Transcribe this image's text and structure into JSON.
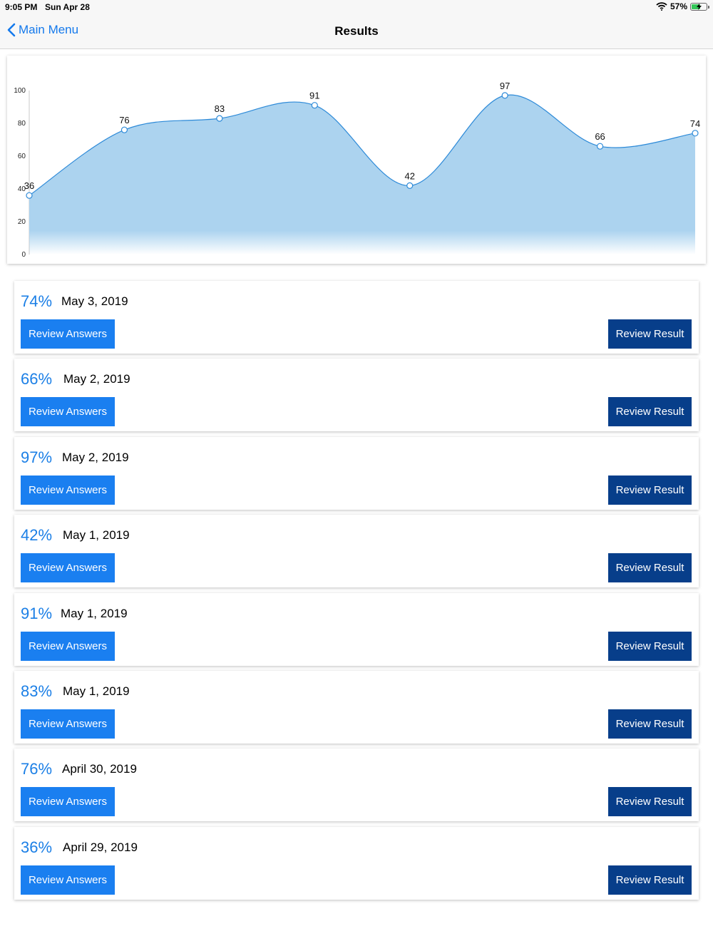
{
  "status": {
    "time": "9:05 PM",
    "date": "Sun Apr 28",
    "battery": "57%",
    "battery_level": 0.57
  },
  "nav": {
    "back_label": "Main Menu",
    "title": "Results"
  },
  "chart_data": {
    "type": "area",
    "x": [
      1,
      2,
      3,
      4,
      5,
      6,
      7,
      8
    ],
    "values": [
      36,
      76,
      83,
      91,
      42,
      97,
      66,
      74
    ],
    "ylim": [
      0,
      100
    ],
    "yticks": [
      0,
      20,
      40,
      60,
      80,
      100
    ],
    "grid": false,
    "colors": {
      "line": "#2d8ad8",
      "fill": "#acd3ef"
    }
  },
  "results": [
    {
      "score": "74%",
      "date": "May 3, 2019"
    },
    {
      "score": "66%",
      "date": "May 2, 2019"
    },
    {
      "score": "97%",
      "date": "May 2, 2019"
    },
    {
      "score": "42%",
      "date": "May 1, 2019"
    },
    {
      "score": "91%",
      "date": "May 1, 2019"
    },
    {
      "score": "83%",
      "date": "May 1, 2019"
    },
    {
      "score": "76%",
      "date": "April 30, 2019"
    },
    {
      "score": "36%",
      "date": "April 29, 2019"
    }
  ],
  "buttons": {
    "review_answers": "Review Answers",
    "review_result": "Review Result"
  }
}
